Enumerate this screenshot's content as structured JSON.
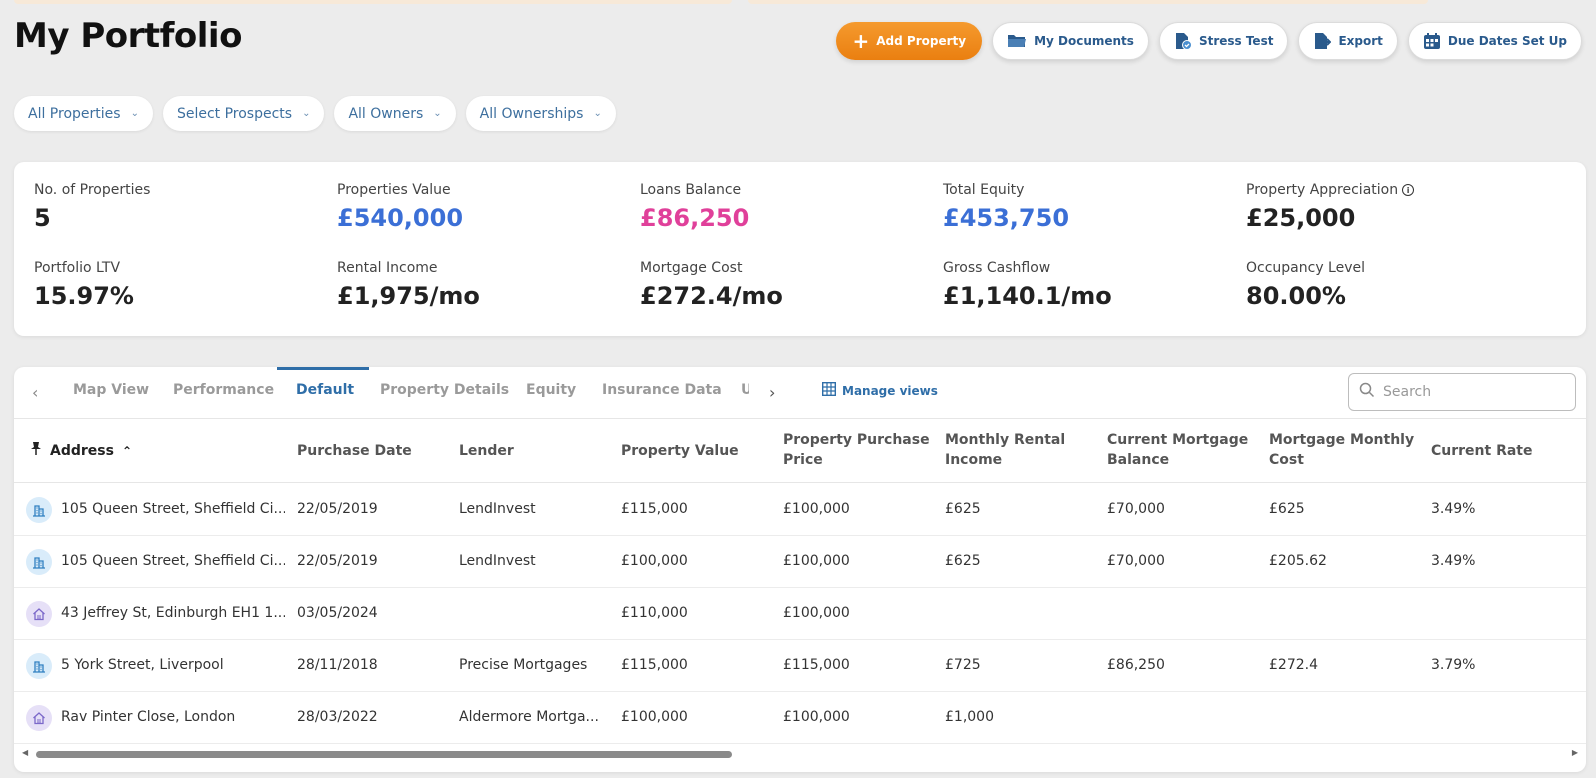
{
  "page": {
    "title": "My Portfolio"
  },
  "toolbar": {
    "add_property": "Add Property",
    "my_documents": "My Documents",
    "stress_test": "Stress Test",
    "export": "Export",
    "due_dates": "Due Dates Set Up"
  },
  "filters": [
    "All Properties",
    "Select Prospects",
    "All Owners",
    "All Ownerships"
  ],
  "stats": {
    "num_properties": {
      "label": "No. of Properties",
      "value": "5"
    },
    "properties_value": {
      "label": "Properties Value",
      "value": "£540,000"
    },
    "loans_balance": {
      "label": "Loans Balance",
      "value": "£86,250"
    },
    "total_equity": {
      "label": "Total Equity",
      "value": "£453,750"
    },
    "property_appreciation": {
      "label": "Property Appreciation",
      "value": "£25,000"
    },
    "portfolio_ltv": {
      "label": "Portfolio LTV",
      "value": "15.97%"
    },
    "rental_income": {
      "label": "Rental Income",
      "value": "£1,975/mo"
    },
    "mortgage_cost": {
      "label": "Mortgage Cost",
      "value": "£272.4/mo"
    },
    "gross_cashflow": {
      "label": "Gross Cashflow",
      "value": "£1,140.1/mo"
    },
    "occupancy_level": {
      "label": "Occupancy Level",
      "value": "80.00%"
    }
  },
  "colors": {
    "value_blue": "#3b6fd6",
    "value_pink": "#e0409a",
    "accent": "#2f6ea8",
    "primary_orange": "#f08a1c"
  },
  "tabs": {
    "items": [
      "Map View",
      "Performance",
      "Default",
      "Property Details",
      "Equity",
      "Insurance Data",
      "U"
    ],
    "active": "Default",
    "manage_views": "Manage views",
    "search_placeholder": "Search"
  },
  "table": {
    "headers": {
      "address": "Address",
      "purchase_date": "Purchase Date",
      "lender": "Lender",
      "property_value": "Property Value",
      "purchase_price_1": "Property Purchase",
      "purchase_price_2": "Price",
      "rental_income_1": "Monthly Rental",
      "rental_income_2": "Income",
      "mortgage_balance_1": "Current Mortgage",
      "mortgage_balance_2": "Balance",
      "mortgage_cost_1": "Mortgage Monthly",
      "mortgage_cost_2": "Cost",
      "current_rate": "Current Rate"
    },
    "rows": [
      {
        "icon": "building-icon",
        "address": "105 Queen Street, Sheffield Ci...",
        "purchase_date": "22/05/2019",
        "lender": "LendInvest",
        "property_value": "£115,000",
        "purchase_price": "£100,000",
        "rental_income": "£625",
        "mortgage_balance": "£70,000",
        "mortgage_cost": "£625",
        "current_rate": "3.49%"
      },
      {
        "icon": "building-icon",
        "address": "105 Queen Street, Sheffield Ci...",
        "purchase_date": "22/05/2019",
        "lender": "LendInvest",
        "property_value": "£100,000",
        "purchase_price": "£100,000",
        "rental_income": "£625",
        "mortgage_balance": "£70,000",
        "mortgage_cost": "£205.62",
        "current_rate": "3.49%"
      },
      {
        "icon": "house-icon",
        "address": "43 Jeffrey St, Edinburgh EH1 1...",
        "purchase_date": "03/05/2024",
        "lender": "",
        "property_value": "£110,000",
        "purchase_price": "£100,000",
        "rental_income": "",
        "mortgage_balance": "",
        "mortgage_cost": "",
        "current_rate": ""
      },
      {
        "icon": "building-icon",
        "address": "5 York Street, Liverpool",
        "purchase_date": "28/11/2018",
        "lender": "Precise Mortgages",
        "property_value": "£115,000",
        "purchase_price": "£115,000",
        "rental_income": "£725",
        "mortgage_balance": "£86,250",
        "mortgage_cost": "£272.4",
        "current_rate": "3.79%"
      },
      {
        "icon": "house-icon",
        "address": "Rav Pinter Close, London",
        "purchase_date": "28/03/2022",
        "lender": "Aldermore Mortga...",
        "property_value": "£100,000",
        "purchase_price": "£100,000",
        "rental_income": "£1,000",
        "mortgage_balance": "",
        "mortgage_cost": "",
        "current_rate": ""
      }
    ]
  }
}
